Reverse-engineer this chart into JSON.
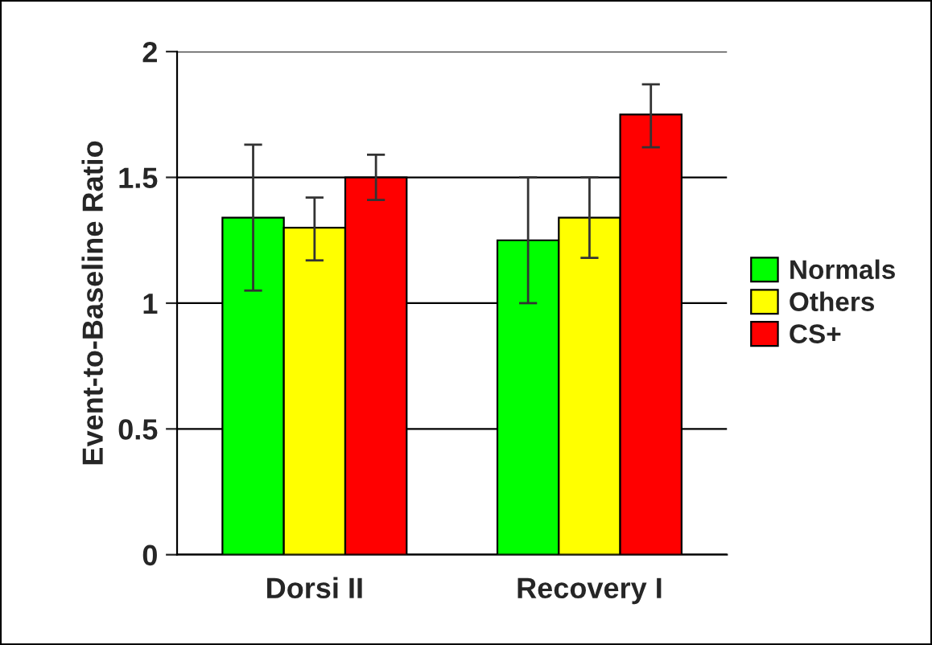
{
  "chart_data": {
    "type": "bar",
    "ylabel": "Event-to-Baseline Ratio",
    "categories": [
      "Dorsi II",
      "Recovery I"
    ],
    "series": [
      {
        "name": "Normals",
        "color": "#00ff00",
        "values": [
          1.34,
          1.25
        ],
        "errors": [
          [
            1.05,
            1.63
          ],
          [
            1.0,
            1.5
          ]
        ]
      },
      {
        "name": "Others",
        "color": "#ffff00",
        "values": [
          1.3,
          1.34
        ],
        "errors": [
          [
            1.17,
            1.42
          ],
          [
            1.18,
            1.5
          ]
        ]
      },
      {
        "name": "CS+",
        "color": "#ff0000",
        "values": [
          1.5,
          1.75
        ],
        "errors": [
          [
            1.41,
            1.59
          ],
          [
            1.62,
            1.87
          ]
        ]
      }
    ],
    "ylim": [
      0,
      2
    ],
    "yticks": [
      0,
      0.5,
      1,
      1.5,
      2
    ],
    "grid": "y",
    "legend": "right"
  }
}
